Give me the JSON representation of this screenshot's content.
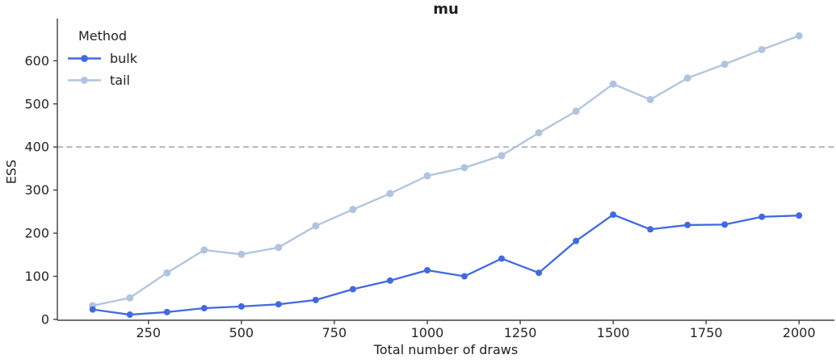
{
  "chart_data": {
    "type": "line",
    "title": "mu",
    "xlabel": "Total number of draws",
    "ylabel": "ESS",
    "legend": {
      "title": "Method",
      "position": "upper left",
      "entries": [
        "bulk",
        "tail"
      ]
    },
    "x": [
      100,
      200,
      300,
      400,
      500,
      600,
      700,
      800,
      900,
      1000,
      1100,
      1200,
      1300,
      1400,
      1500,
      1600,
      1700,
      1800,
      1900,
      2000
    ],
    "series": [
      {
        "name": "bulk",
        "color": "#4169E1",
        "marker": "circle",
        "marker_r": 4.0,
        "values": [
          23,
          11,
          17,
          26,
          30,
          35,
          45,
          70,
          90,
          114,
          100,
          141,
          108,
          182,
          243,
          209,
          219,
          220,
          238,
          241
        ]
      },
      {
        "name": "tail",
        "color": "#B0C4DE",
        "marker": "circle",
        "marker_r": 4.5,
        "values": [
          32,
          50,
          108,
          161,
          151,
          167,
          217,
          255,
          292,
          333,
          352,
          380,
          433,
          483,
          546,
          510,
          560,
          592,
          626,
          658
        ]
      }
    ],
    "rule_line": {
      "y": 400,
      "style": "dashed",
      "color": "#9a9a9a"
    },
    "xlim": [
      5,
      2095
    ],
    "ylim": [
      -2,
      698
    ],
    "xticks": [
      250,
      500,
      750,
      1000,
      1250,
      1500,
      1750,
      2000
    ],
    "yticks": [
      0,
      100,
      200,
      300,
      400,
      500,
      600
    ],
    "grid": false,
    "colors": {
      "axis": "#404040",
      "text": "#262626",
      "background": "#ffffff"
    }
  }
}
